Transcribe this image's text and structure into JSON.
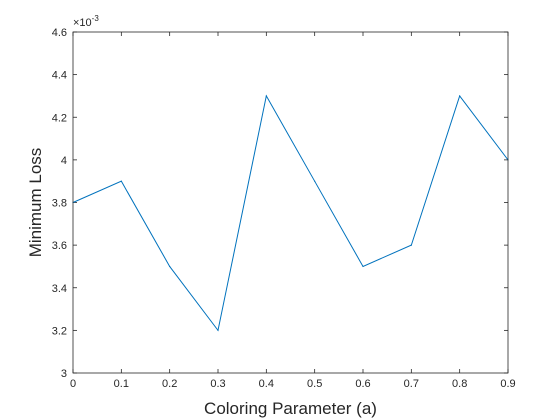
{
  "chart_data": {
    "type": "line",
    "x": [
      0,
      0.1,
      0.2,
      0.3,
      0.4,
      0.5,
      0.6,
      0.7,
      0.8,
      0.9
    ],
    "series": [
      {
        "values": [
          0.0038,
          0.0039,
          0.0035,
          0.0032,
          0.0043,
          0.0039,
          0.0035,
          0.0036,
          0.0043,
          0.004
        ],
        "color": "#0072BD"
      }
    ],
    "xlabel": "Coloring Parameter (a)",
    "ylabel": "Minimum Loss",
    "xlim": [
      0,
      0.9
    ],
    "ylim": [
      0.003,
      0.0046
    ],
    "x_ticks": [
      "0",
      "0.1",
      "0.2",
      "0.3",
      "0.4",
      "0.5",
      "0.6",
      "0.7",
      "0.8",
      "0.9"
    ],
    "y_ticks": [
      "3",
      "3.2",
      "3.4",
      "3.6",
      "3.8",
      "4",
      "4.2",
      "4.4",
      "4.6"
    ],
    "y_exponent_base": "×10",
    "y_exponent": "-3",
    "grid": false,
    "box": true
  }
}
